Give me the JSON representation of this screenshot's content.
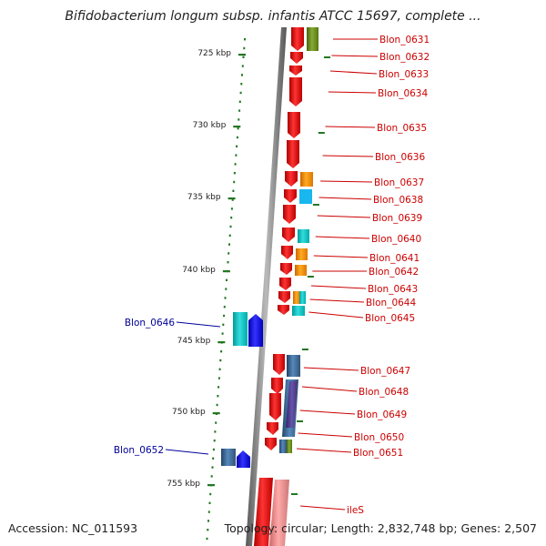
{
  "title": "Bifidobacterium longum subsp. infantis ATCC 15697, complete ...",
  "accession": "Accession: NC_011593",
  "topology": "Topology: circular; Length: 2,832,748 bp; Genes: 2,507",
  "colors": {
    "red_gene": "#ee1111",
    "light_red_gene": "#ee8888",
    "blue_gene": "#1111ee",
    "cyan_gene": "#11cccc",
    "orange_gene": "#ff9900",
    "steel_gene": "#4477aa",
    "olive_gene": "#779922",
    "tick_green": "#227722",
    "label_red": "#cc0000",
    "label_blue": "#000099"
  },
  "scale_labels": [
    "725 kbp",
    "730 kbp",
    "735 kbp",
    "740 kbp",
    "745 kbp",
    "750 kbp",
    "755 kbp"
  ],
  "genes_right": [
    {
      "label": "Blon_0631"
    },
    {
      "label": "Blon_0632"
    },
    {
      "label": "Blon_0633"
    },
    {
      "label": "Blon_0634"
    },
    {
      "label": "Blon_0635"
    },
    {
      "label": "Blon_0636"
    },
    {
      "label": "Blon_0637"
    },
    {
      "label": "Blon_0638"
    },
    {
      "label": "Blon_0639"
    },
    {
      "label": "Blon_0640"
    },
    {
      "label": "Blon_0641"
    },
    {
      "label": "Blon_0642"
    },
    {
      "label": "Blon_0643"
    },
    {
      "label": "Blon_0644"
    },
    {
      "label": "Blon_0645"
    },
    {
      "label": "Blon_0647"
    },
    {
      "label": "Blon_0648"
    },
    {
      "label": "Blon_0649"
    },
    {
      "label": "Blon_0650"
    },
    {
      "label": "Blon_0651"
    },
    {
      "label": "ileS"
    }
  ],
  "genes_left": [
    {
      "label": "Blon_0646"
    },
    {
      "label": "Blon_0652"
    }
  ]
}
